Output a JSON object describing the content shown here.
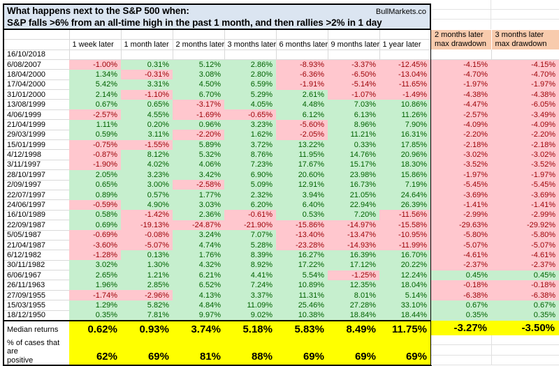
{
  "title": {
    "line1": "What happens next to the S&P 500 when:",
    "line2": "S&P falls >6% from an all-time high in the past 1 month, and then rallies >2% in 1 day",
    "brand": "BullMarkets.co"
  },
  "chart_data": {
    "type": "table",
    "return_columns": [
      "1 week later",
      "1 month later",
      "2 months later",
      "3 months later",
      "6 months later",
      "9 months later",
      "1 year later"
    ],
    "drawdown_headers": [
      {
        "line1": "2 months later",
        "line2": "max drawdown"
      },
      {
        "line1": "3 months later",
        "line2": "max drawdown"
      }
    ],
    "rows": [
      {
        "date": "16/10/2018",
        "returns": [
          "",
          "",
          "",
          "",
          "",
          "",
          ""
        ],
        "drawdowns": [
          "",
          ""
        ]
      },
      {
        "date": "6/08/2007",
        "returns": [
          "-1.00%",
          "0.31%",
          "5.12%",
          "2.86%",
          "-8.93%",
          "-3.37%",
          "-12.45%"
        ],
        "drawdowns": [
          "-4.15%",
          "-4.15%"
        ]
      },
      {
        "date": "18/04/2000",
        "returns": [
          "1.34%",
          "-0.31%",
          "3.08%",
          "2.80%",
          "-6.36%",
          "-6.50%",
          "-13.04%"
        ],
        "drawdowns": [
          "-4.70%",
          "-4.70%"
        ]
      },
      {
        "date": "17/04/2000",
        "returns": [
          "5.42%",
          "3.31%",
          "4.50%",
          "6.59%",
          "-1.91%",
          "-5.14%",
          "-11.65%"
        ],
        "drawdowns": [
          "-1.97%",
          "-1.97%"
        ]
      },
      {
        "date": "31/01/2000",
        "returns": [
          "2.14%",
          "-1.10%",
          "6.70%",
          "5.29%",
          "2.61%",
          "-1.07%",
          "-1.49%"
        ],
        "drawdowns": [
          "-4.38%",
          "-4.38%"
        ]
      },
      {
        "date": "13/08/1999",
        "returns": [
          "0.67%",
          "0.65%",
          "-3.17%",
          "4.05%",
          "4.48%",
          "7.03%",
          "10.86%"
        ],
        "drawdowns": [
          "-4.47%",
          "-6.05%"
        ]
      },
      {
        "date": "4/06/1999",
        "returns": [
          "-2.57%",
          "4.55%",
          "-1.69%",
          "-0.65%",
          "6.12%",
          "6.13%",
          "11.26%"
        ],
        "drawdowns": [
          "-2.57%",
          "-3.49%"
        ]
      },
      {
        "date": "21/04/1999",
        "returns": [
          "1.11%",
          "0.20%",
          "0.96%",
          "3.23%",
          "-5.60%",
          "8.96%",
          "7.90%"
        ],
        "drawdowns": [
          "-4.09%",
          "-4.09%"
        ]
      },
      {
        "date": "29/03/1999",
        "returns": [
          "0.59%",
          "3.11%",
          "-2.20%",
          "1.62%",
          "-2.05%",
          "11.21%",
          "16.31%"
        ],
        "drawdowns": [
          "-2.20%",
          "-2.20%"
        ]
      },
      {
        "date": "15/01/1999",
        "returns": [
          "-0.75%",
          "-1.55%",
          "5.89%",
          "3.72%",
          "13.22%",
          "0.33%",
          "17.85%"
        ],
        "drawdowns": [
          "-2.18%",
          "-2.18%"
        ]
      },
      {
        "date": "4/12/1998",
        "returns": [
          "-0.87%",
          "8.12%",
          "5.32%",
          "8.76%",
          "11.95%",
          "14.76%",
          "20.96%"
        ],
        "drawdowns": [
          "-3.02%",
          "-3.02%"
        ]
      },
      {
        "date": "3/11/1997",
        "returns": [
          "-1.90%",
          "4.02%",
          "4.06%",
          "7.23%",
          "17.67%",
          "15.17%",
          "18.30%"
        ],
        "drawdowns": [
          "-3.52%",
          "-3.52%"
        ]
      },
      {
        "date": "28/10/1997",
        "returns": [
          "2.05%",
          "3.23%",
          "3.42%",
          "6.90%",
          "20.60%",
          "23.98%",
          "15.86%"
        ],
        "drawdowns": [
          "-1.97%",
          "-1.97%"
        ]
      },
      {
        "date": "2/09/1997",
        "returns": [
          "0.65%",
          "3.00%",
          "-2.58%",
          "5.09%",
          "12.91%",
          "16.73%",
          "7.19%"
        ],
        "drawdowns": [
          "-5.45%",
          "-5.45%"
        ]
      },
      {
        "date": "22/07/1997",
        "returns": [
          "0.89%",
          "0.57%",
          "1.77%",
          "2.32%",
          "3.94%",
          "21.05%",
          "24.64%"
        ],
        "drawdowns": [
          "-3.69%",
          "-3.69%"
        ]
      },
      {
        "date": "24/06/1997",
        "returns": [
          "-0.59%",
          "4.90%",
          "3.03%",
          "6.20%",
          "6.40%",
          "22.94%",
          "26.39%"
        ],
        "drawdowns": [
          "-1.41%",
          "-1.41%"
        ]
      },
      {
        "date": "16/10/1989",
        "returns": [
          "0.58%",
          "-1.42%",
          "2.36%",
          "-0.61%",
          "0.53%",
          "7.20%",
          "-11.56%"
        ],
        "drawdowns": [
          "-2.99%",
          "-2.99%"
        ]
      },
      {
        "date": "22/09/1987",
        "returns": [
          "0.69%",
          "-19.13%",
          "-24.87%",
          "-21.90%",
          "-15.86%",
          "-14.97%",
          "-15.58%"
        ],
        "drawdowns": [
          "-29.63%",
          "-29.92%"
        ]
      },
      {
        "date": "5/05/1987",
        "returns": [
          "-0.69%",
          "-0.08%",
          "3.24%",
          "7.07%",
          "-13.40%",
          "-13.47%",
          "-10.95%"
        ],
        "drawdowns": [
          "-5.80%",
          "-5.80%"
        ]
      },
      {
        "date": "21/04/1987",
        "returns": [
          "-3.60%",
          "-5.07%",
          "4.74%",
          "5.28%",
          "-23.28%",
          "-14.93%",
          "-11.99%"
        ],
        "drawdowns": [
          "-5.07%",
          "-5.07%"
        ]
      },
      {
        "date": "6/12/1982",
        "returns": [
          "-1.28%",
          "0.13%",
          "1.76%",
          "8.39%",
          "16.27%",
          "16.39%",
          "16.70%"
        ],
        "drawdowns": [
          "-4.61%",
          "-4.61%"
        ]
      },
      {
        "date": "30/11/1982",
        "returns": [
          "3.02%",
          "1.30%",
          "4.32%",
          "8.92%",
          "17.22%",
          "17.12%",
          "20.22%"
        ],
        "drawdowns": [
          "-2.37%",
          "-2.37%"
        ]
      },
      {
        "date": "6/06/1967",
        "returns": [
          "2.65%",
          "1.21%",
          "6.21%",
          "4.41%",
          "5.54%",
          "-1.25%",
          "12.24%"
        ],
        "drawdowns": [
          "0.45%",
          "0.45%"
        ]
      },
      {
        "date": "26/11/1963",
        "returns": [
          "1.96%",
          "2.85%",
          "6.52%",
          "7.24%",
          "10.89%",
          "12.35%",
          "18.04%"
        ],
        "drawdowns": [
          "-0.18%",
          "-0.18%"
        ]
      },
      {
        "date": "27/09/1955",
        "returns": [
          "-1.74%",
          "-2.96%",
          "4.13%",
          "3.37%",
          "11.31%",
          "8.01%",
          "5.14%"
        ],
        "drawdowns": [
          "-6.38%",
          "-6.38%"
        ]
      },
      {
        "date": "15/03/1955",
        "returns": [
          "1.29%",
          "5.82%",
          "4.84%",
          "11.09%",
          "25.46%",
          "27.28%",
          "33.10%"
        ],
        "drawdowns": [
          "0.67%",
          "0.67%"
        ]
      },
      {
        "date": "18/12/1950",
        "returns": [
          "0.35%",
          "7.81%",
          "9.97%",
          "9.02%",
          "10.38%",
          "18.84%",
          "18.44%"
        ],
        "drawdowns": [
          "0.35%",
          "0.35%"
        ]
      }
    ],
    "median": {
      "label": "Median returns",
      "returns": [
        "0.62%",
        "0.93%",
        "3.74%",
        "5.18%",
        "5.83%",
        "8.49%",
        "11.75%"
      ],
      "drawdowns": [
        "-3.27%",
        "-3.50%"
      ]
    },
    "percent_positive": {
      "label_line1": "% of cases that are",
      "label_line2": "positive",
      "returns": [
        "62%",
        "69%",
        "81%",
        "88%",
        "69%",
        "69%",
        "69%"
      ]
    },
    "colors": {
      "positive_fill": "#c6efce",
      "positive_text": "#006100",
      "negative_fill": "#ffc7ce",
      "negative_text": "#9c0006",
      "highlight_fill": "#ffff00",
      "drawdown_header_fill": "#f8cbad",
      "title_fill": "#dbe5f1"
    },
    "layout": {
      "grid": "on",
      "legend": "none"
    }
  }
}
